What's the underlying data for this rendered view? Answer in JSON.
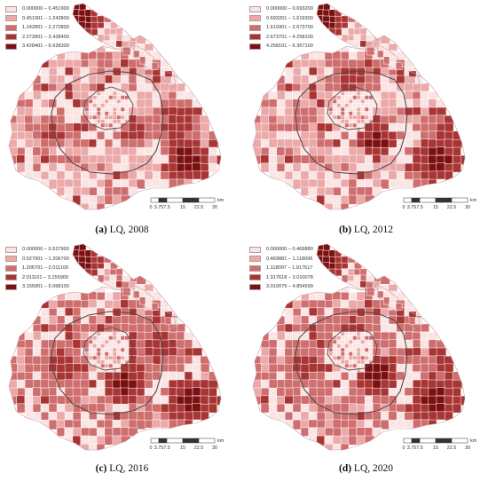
{
  "palette": [
    "#fbe4e4",
    "#eba9a9",
    "#cf6e6e",
    "#a83434",
    "#7c0f10"
  ],
  "outline_color": "#5a4a4a",
  "panels": [
    {
      "label": "(a)",
      "title": "LQ, 2008",
      "legend": [
        "0.000000 – 0.451900",
        "0.451901 – 1.242800",
        "1.242801 – 2.272800",
        "2.272801 – 3.428400",
        "3.428401 – 6.628300"
      ]
    },
    {
      "label": "(b)",
      "title": "LQ, 2012",
      "legend": [
        "0.000000 – 0.693200",
        "0.693201 – 1.619300",
        "1.619301 – 2.673700",
        "2.673701 – 4.258100",
        "4.258101 – 6.367100"
      ]
    },
    {
      "label": "(c)",
      "title": "LQ, 2016",
      "legend": [
        "0.000000 – 0.527900",
        "0.527901 – 1.206700",
        "1.206701 – 2.011100",
        "2.011101 – 3.155900",
        "3.155901 – 5.068100"
      ]
    },
    {
      "label": "(d)",
      "title": "LQ, 2020",
      "legend": [
        "0.000000 – 0.469880",
        "0.469881 – 1.118096",
        "1.118097 – 1.917617",
        "1.917618 – 3.010078",
        "3.010079 – 4.854599"
      ]
    }
  ],
  "scale": {
    "ticks": [
      "0",
      "3.75",
      "7.5",
      "15",
      "22.5",
      "30"
    ],
    "unit": "km"
  }
}
